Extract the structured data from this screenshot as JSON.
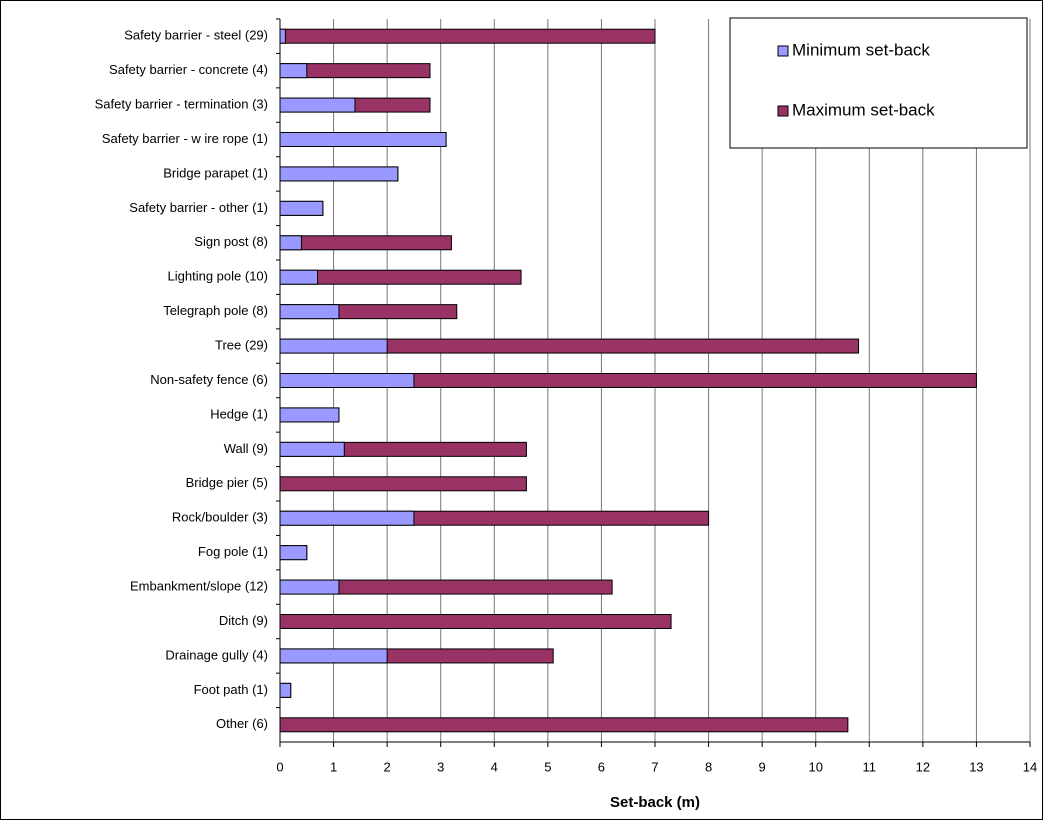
{
  "chart_data": {
    "type": "bar",
    "orientation": "horizontal",
    "overlap": true,
    "xlabel": "Set-back (m)",
    "categories": [
      "Safety barrier - steel (29)",
      "Safety barrier - concrete (4)",
      "Safety barrier - termination (3)",
      "Safety barrier - w ire rope (1)",
      "Bridge parapet (1)",
      "Safety barrier - other (1)",
      "Sign post (8)",
      "Lighting pole (10)",
      "Telegraph pole (8)",
      "Tree (29)",
      "Non-safety fence (6)",
      "Hedge (1)",
      "Wall (9)",
      "Bridge pier (5)",
      "Rock/boulder (3)",
      "Fog pole (1)",
      "Embankment/slope (12)",
      "Ditch (9)",
      "Drainage gully (4)",
      "Foot path (1)",
      "Other (6)"
    ],
    "series": [
      {
        "name": "Maximum set-back",
        "color": "#993366",
        "values": [
          7.0,
          2.8,
          2.8,
          3.1,
          2.2,
          0.8,
          3.2,
          4.5,
          3.3,
          10.8,
          13,
          1.1,
          4.6,
          4.6,
          8,
          0.5,
          6.2,
          7.3,
          5.1,
          0.2,
          10.6
        ]
      },
      {
        "name": "Minimum set-back",
        "color": "#9999ff",
        "values": [
          0.1,
          0.5,
          1.4,
          3.1,
          2.2,
          0.8,
          0.4,
          0.7,
          1.1,
          2.0,
          2.5,
          1.1,
          1.2,
          0,
          2.5,
          0.5,
          1.1,
          0,
          2.0,
          0.2,
          0
        ]
      }
    ],
    "xlim": [
      0,
      14
    ],
    "xticks": [
      0,
      1,
      2,
      3,
      4,
      5,
      6,
      7,
      8,
      9,
      10,
      11,
      12,
      13,
      14
    ],
    "grid": true,
    "legend": "top-right"
  }
}
